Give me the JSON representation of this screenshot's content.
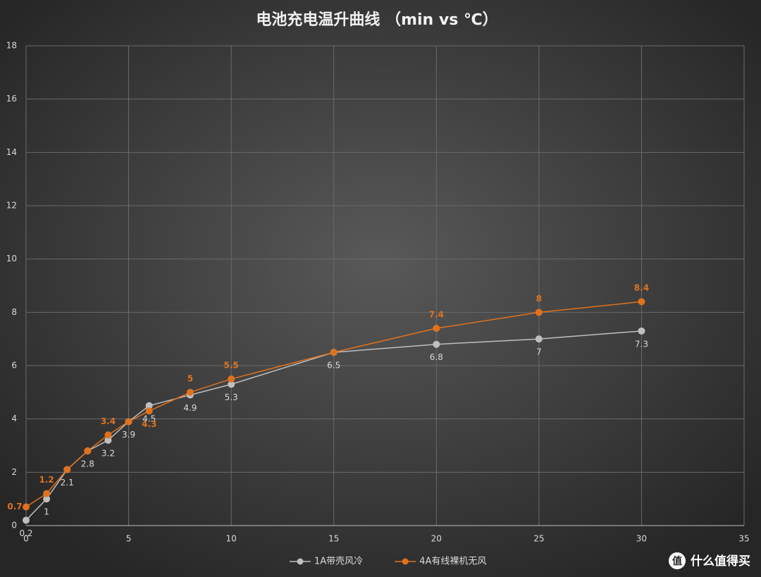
{
  "chart_data": {
    "type": "line",
    "title": "电池充电温升曲线 （min vs ℃）",
    "x": [
      0,
      1,
      2,
      3,
      4,
      5,
      6,
      8,
      10,
      15,
      20,
      25,
      30
    ],
    "xlim": [
      0,
      35
    ],
    "xticks": [
      0,
      5,
      10,
      15,
      20,
      25,
      30,
      35
    ],
    "ylim": [
      0,
      18
    ],
    "yticks": [
      0,
      2,
      4,
      6,
      8,
      10,
      12,
      14,
      16,
      18
    ],
    "grid": true,
    "legend": "bottom",
    "series": [
      {
        "name": "1A带壳风冷",
        "color": "#bfbfbf",
        "values": [
          0.2,
          1,
          2.1,
          2.8,
          3.2,
          3.9,
          4.5,
          4.9,
          5.3,
          6.5,
          6.8,
          7,
          7.3
        ],
        "value_labels": [
          "0.2",
          "1",
          "2.1",
          "2.8",
          "3.2",
          "3.9",
          "4.5",
          "4.9",
          "5.3",
          "6.5",
          "6.8",
          "7",
          "7.3"
        ]
      },
      {
        "name": "4A有线裸机无风",
        "color": "#e0721e",
        "values": [
          0.7,
          1.2,
          2.1,
          2.8,
          3.4,
          3.9,
          4.3,
          5,
          5.5,
          6.5,
          7.4,
          8,
          8.4
        ],
        "value_labels": [
          "0.7",
          "1.2",
          null,
          null,
          "3.4",
          null,
          "4.3",
          "5",
          "5.5",
          null,
          "7.4",
          "8",
          "8.4"
        ]
      }
    ]
  },
  "watermark": "什么值得买"
}
